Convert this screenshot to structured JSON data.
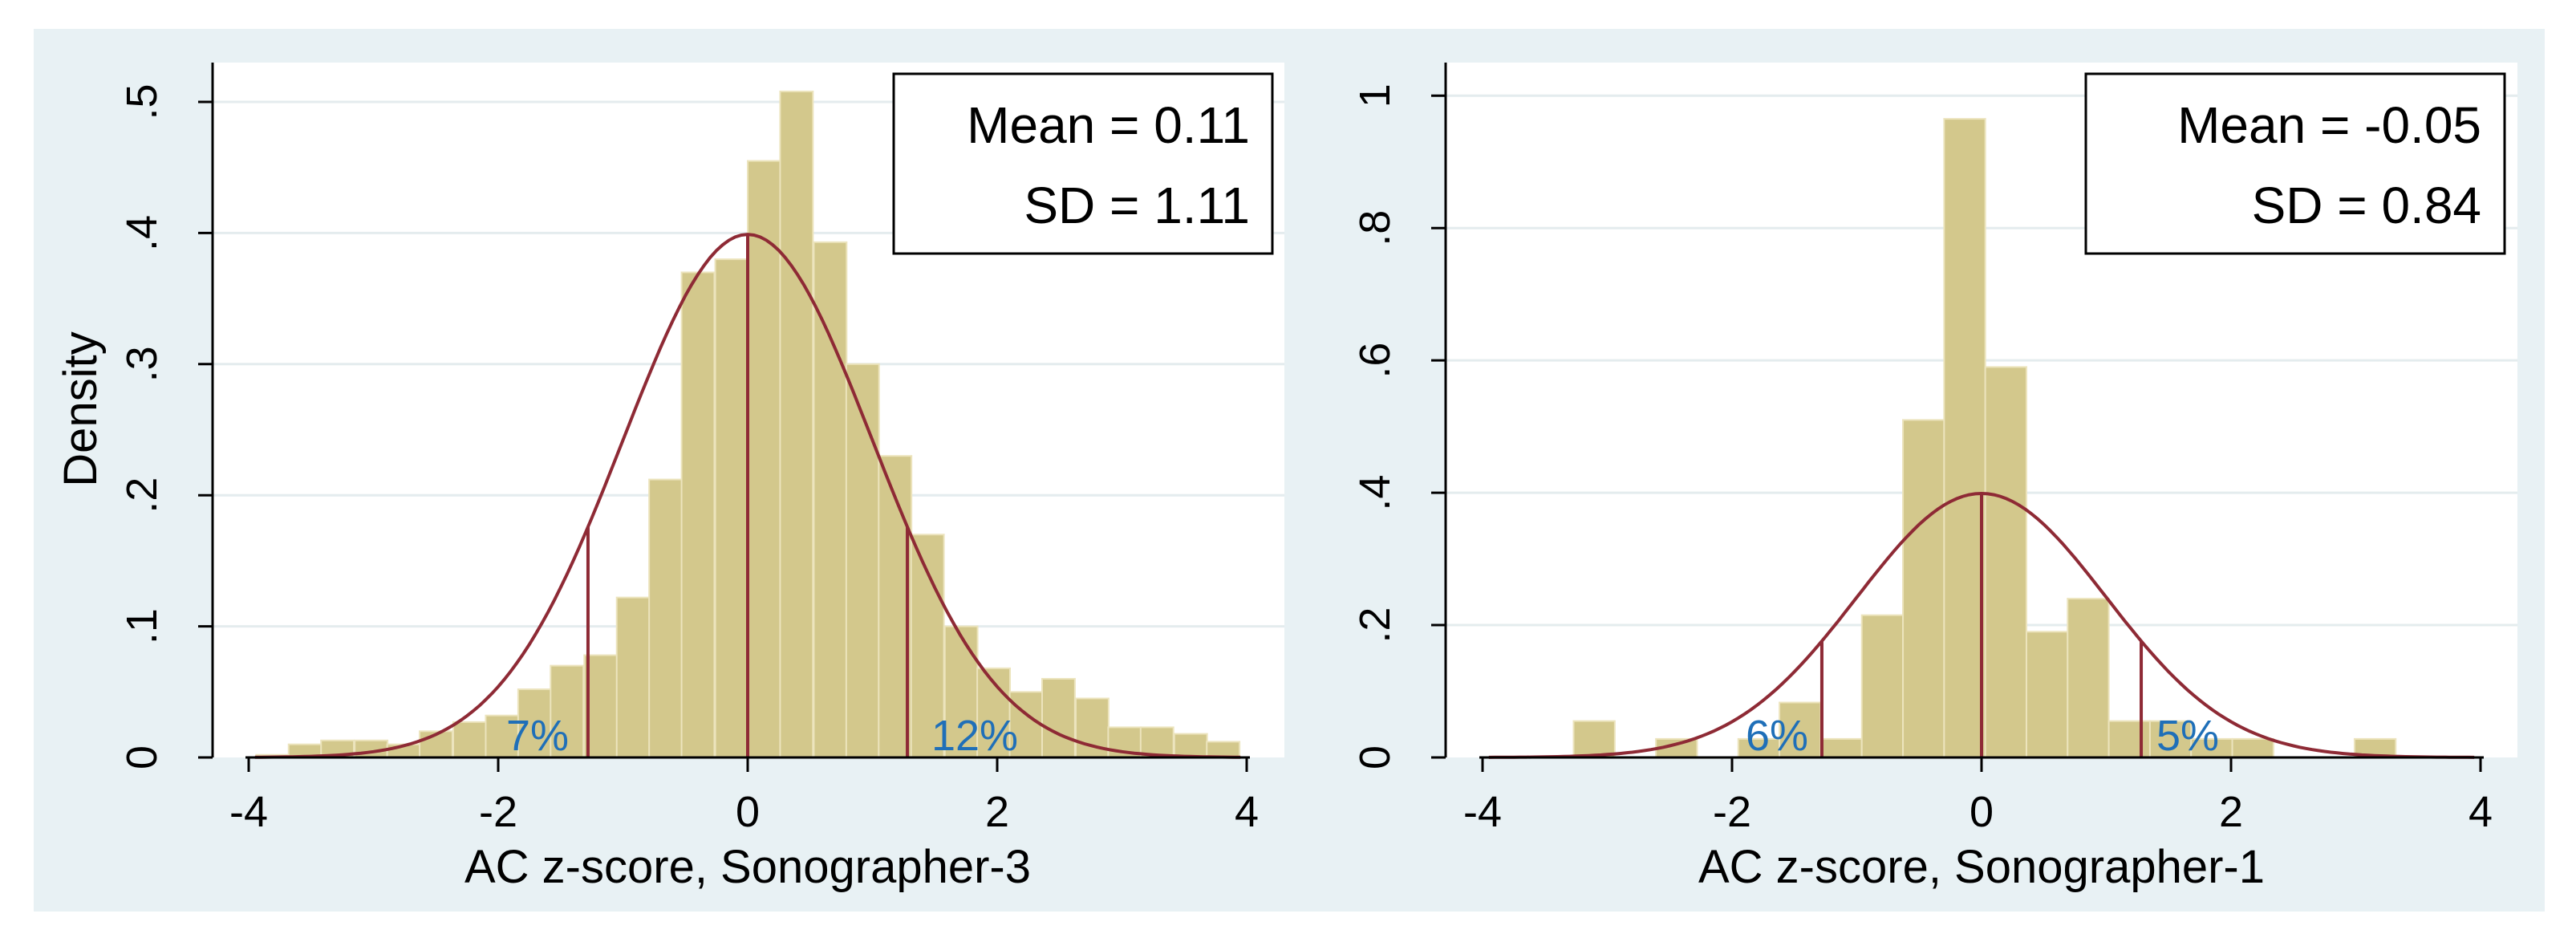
{
  "colors": {
    "outer_background": "#e8f1f4",
    "plot_background": "#ffffff",
    "bar_fill": "#d3c88c",
    "bar_stroke": "#ece4bd",
    "curve": "#8e2a35",
    "grid": "#e4ecee",
    "axis": "#000000",
    "percent_label": "#1f6fb8"
  },
  "chart_data": [
    {
      "type": "bar",
      "subtype": "histogram-with-normal-curve",
      "xlabel": "AC z-score, Sonographer-3",
      "ylabel": "Density",
      "xlim": [
        -4.2,
        4.2
      ],
      "ylim": [
        0,
        0.53
      ],
      "xticks": [
        "-4",
        "-2",
        "0",
        "2",
        "4"
      ],
      "xtick_values": [
        -4,
        -2,
        0,
        2,
        4
      ],
      "yticks": [
        "0",
        ".1",
        ".2",
        ".3",
        ".4",
        ".5"
      ],
      "ytick_values": [
        0,
        0.1,
        0.2,
        0.3,
        0.4,
        0.5
      ],
      "grid": true,
      "bin_width": 0.263,
      "bin_starts": [
        -3.94,
        -3.68,
        -3.42,
        -3.15,
        -2.89,
        -2.63,
        -2.36,
        -2.1,
        -1.84,
        -1.58,
        -1.31,
        -1.05,
        -0.79,
        -0.53,
        -0.26,
        0.0,
        0.26,
        0.53,
        0.79,
        1.05,
        1.31,
        1.58,
        1.84,
        2.1,
        2.36,
        2.63,
        2.89,
        3.15,
        3.42,
        3.68
      ],
      "values": [
        0.002,
        0.01,
        0.013,
        0.013,
        0.01,
        0.02,
        0.027,
        0.032,
        0.052,
        0.07,
        0.078,
        0.122,
        0.212,
        0.37,
        0.38,
        0.455,
        0.508,
        0.393,
        0.3,
        0.23,
        0.17,
        0.1,
        0.068,
        0.05,
        0.06,
        0.045,
        0.023,
        0.023,
        0.018,
        0.012
      ],
      "normal_curve": {
        "mean": 0,
        "sd": 1
      },
      "reference_lines_x": [
        -1.28,
        0,
        1.28
      ],
      "annotations": {
        "stats_mean": "Mean = 0.11",
        "stats_sd": "SD = 1.11",
        "left_pct": "7%",
        "right_pct": "12%"
      },
      "legend_position": "top-right"
    },
    {
      "type": "bar",
      "subtype": "histogram-with-normal-curve",
      "xlabel": "AC z-score, Sonographer-1",
      "ylabel": "",
      "xlim": [
        -4.2,
        4.2
      ],
      "ylim": [
        0,
        1.05
      ],
      "xticks": [
        "-4",
        "-2",
        "0",
        "2",
        "4"
      ],
      "xtick_values": [
        -4,
        -2,
        0,
        2,
        4
      ],
      "yticks": [
        "0",
        ".2",
        ".4",
        ".6",
        ".8",
        "1"
      ],
      "ytick_values": [
        0,
        0.2,
        0.4,
        0.6,
        0.8,
        1.0
      ],
      "grid": true,
      "bin_width": 0.33,
      "bin_starts": [
        -3.27,
        -2.61,
        -1.95,
        -1.62,
        -1.29,
        -0.96,
        -0.63,
        -0.3,
        0.03,
        0.36,
        0.69,
        1.02,
        1.35,
        1.68,
        2.01,
        2.99
      ],
      "values": [
        0.055,
        0.028,
        0.028,
        0.083,
        0.028,
        0.215,
        0.51,
        0.965,
        0.59,
        0.19,
        0.24,
        0.055,
        0.055,
        0.028,
        0.028,
        0.028
      ],
      "normal_curve": {
        "mean": 0,
        "sd": 1
      },
      "reference_lines_x": [
        -1.28,
        0,
        1.28
      ],
      "annotations": {
        "stats_mean": "Mean = -0.05",
        "stats_sd": "SD = 0.84",
        "left_pct": "6%",
        "right_pct": "5%"
      },
      "legend_position": "top-right"
    }
  ]
}
